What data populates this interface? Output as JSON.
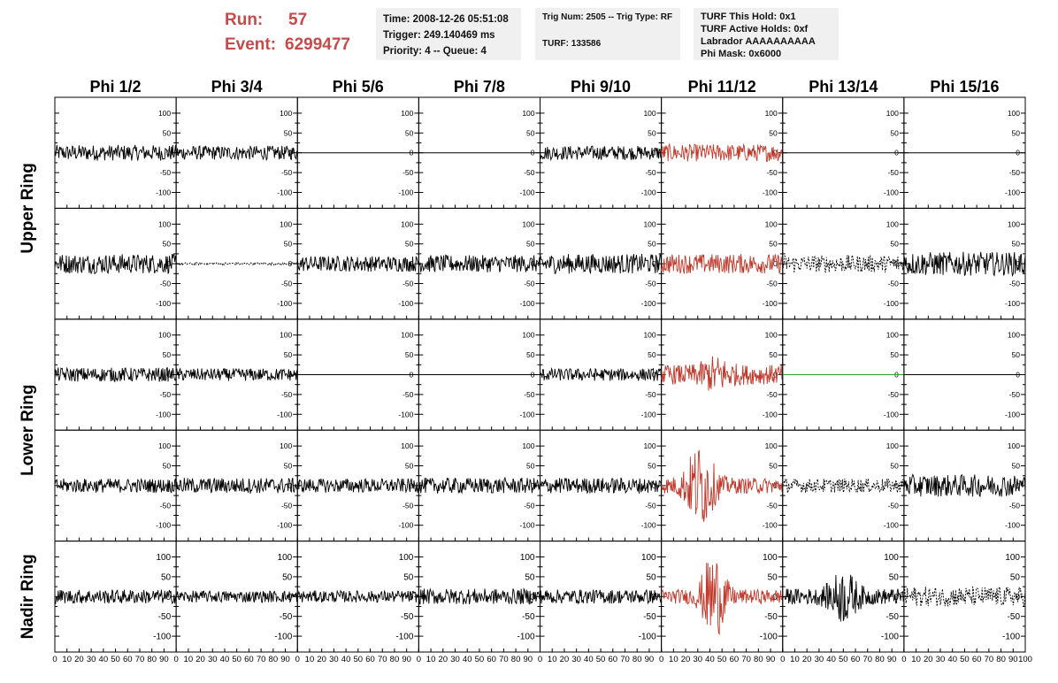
{
  "header": {
    "run_label": "Run:",
    "run_value": "57",
    "event_label": "Event:",
    "event_value": "6299477",
    "time_lines": [
      "Time: 2008-12-26 05:51:08",
      "Trigger: 249.140469 ms",
      "Priority: 4 -- Queue: 4"
    ],
    "trig_lines": [
      "Trig Num: 2505 -- Trig Type: RF",
      "",
      "TURF: 133586"
    ],
    "turf_lines": [
      "TURF This Hold: 0x1",
      "TURF Active Holds: 0xf",
      "Labrador AAAAAAAAAA",
      "Phi Mask: 0x6000"
    ]
  },
  "colors": {
    "header_red": "#c64a4a",
    "trace_black": "#000000",
    "trace_red": "#c0392b",
    "trace_green": "#2e9d2e",
    "info_bg": "#f0f0f0"
  },
  "chart_data": {
    "type": "line",
    "columns": [
      "Phi 1/2",
      "Phi 3/4",
      "Phi 5/6",
      "Phi 7/8",
      "Phi 9/10",
      "Phi 11/12",
      "Phi 13/14",
      "Phi 15/16"
    ],
    "rows": [
      {
        "label": "Upper Ring",
        "row_index": 0
      },
      {
        "label": "Upper Ring",
        "row_index": 1
      },
      {
        "label": "Lower Ring",
        "row_index": 2
      },
      {
        "label": "Lower Ring",
        "row_index": 3
      },
      {
        "label": "Nadir Ring",
        "row_index": 4
      }
    ],
    "row_labels": [
      {
        "text": "Upper Ring",
        "spans_rows": [
          0,
          1
        ]
      },
      {
        "text": "Lower Ring",
        "spans_rows": [
          2,
          3
        ]
      },
      {
        "text": "Nadir Ring",
        "spans_rows": [
          4
        ]
      }
    ],
    "xlim": [
      0,
      100
    ],
    "ylim": [
      -140,
      140
    ],
    "x_ticks": [
      0,
      10,
      20,
      30,
      40,
      50,
      60,
      70,
      80,
      90,
      100
    ],
    "x_tick_labels": [
      "0",
      "10",
      "20",
      "30",
      "40",
      "50",
      "60",
      "70",
      "80",
      "90",
      "100"
    ],
    "y_ticks": [
      -100,
      -50,
      0,
      50,
      100
    ],
    "y_tick_labels": [
      "-100",
      "-50",
      "0",
      "50",
      "100"
    ],
    "grid": false,
    "traces": [
      [
        {
          "amp": 20,
          "style": "black"
        },
        {
          "amp": 18,
          "style": "black"
        },
        {
          "amp": 0,
          "style": "flat"
        },
        {
          "amp": 0,
          "style": "flat"
        },
        {
          "amp": 18,
          "style": "black"
        },
        {
          "amp": 22,
          "style": "red"
        },
        {
          "amp": 0,
          "style": "flat"
        },
        {
          "amp": 0,
          "style": "flat"
        }
      ],
      [
        {
          "amp": 25,
          "style": "black"
        },
        {
          "amp": 3,
          "style": "dashed"
        },
        {
          "amp": 20,
          "style": "black"
        },
        {
          "amp": 22,
          "style": "black"
        },
        {
          "amp": 25,
          "style": "black"
        },
        {
          "amp": 25,
          "style": "red"
        },
        {
          "amp": 22,
          "style": "dashed"
        },
        {
          "amp": 30,
          "style": "black"
        }
      ],
      [
        {
          "amp": 18,
          "style": "black"
        },
        {
          "amp": 16,
          "style": "black"
        },
        {
          "amp": 0,
          "style": "flat"
        },
        {
          "amp": 0,
          "style": "flat"
        },
        {
          "amp": 16,
          "style": "black"
        },
        {
          "amp": 25,
          "style": "red",
          "burst": {
            "center": 45,
            "width": 12,
            "peak": 50
          }
        },
        {
          "amp": 0,
          "style": "green"
        },
        {
          "amp": 0,
          "style": "flat"
        }
      ],
      [
        {
          "amp": 18,
          "style": "black"
        },
        {
          "amp": 20,
          "style": "black"
        },
        {
          "amp": 18,
          "style": "black"
        },
        {
          "amp": 20,
          "style": "black"
        },
        {
          "amp": 20,
          "style": "black"
        },
        {
          "amp": 20,
          "style": "red",
          "burst": {
            "center": 32,
            "width": 12,
            "peak": 110
          }
        },
        {
          "amp": 18,
          "style": "dashed"
        },
        {
          "amp": 28,
          "style": "black"
        }
      ],
      [
        {
          "amp": 18,
          "style": "black"
        },
        {
          "amp": 15,
          "style": "black"
        },
        {
          "amp": 15,
          "style": "black"
        },
        {
          "amp": 20,
          "style": "black"
        },
        {
          "amp": 18,
          "style": "black"
        },
        {
          "amp": 18,
          "style": "red",
          "burst": {
            "center": 43,
            "width": 10,
            "peak": 115
          }
        },
        {
          "amp": 20,
          "style": "black",
          "burst": {
            "center": 50,
            "width": 12,
            "peak": 70
          }
        },
        {
          "amp": 25,
          "style": "dashed"
        }
      ]
    ]
  }
}
